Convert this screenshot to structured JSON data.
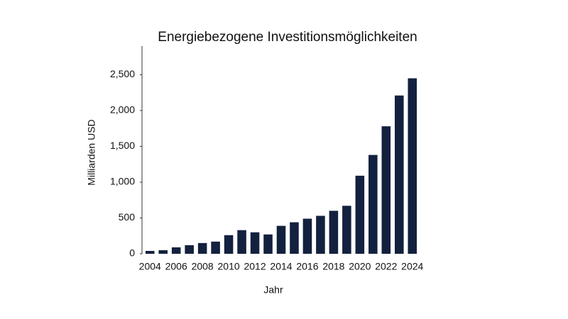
{
  "chart_data": {
    "type": "bar",
    "title": "Energiebezogene Investitionsmöglichkeiten",
    "x_label": "Jahr",
    "y_label": "Milliarden USD",
    "categories": [
      "2004",
      null,
      "2006",
      null,
      "2008",
      null,
      "2010",
      null,
      "2012",
      null,
      "2014",
      null,
      "2016",
      null,
      "2018",
      null,
      "2020",
      null,
      "2022",
      null,
      "2024"
    ],
    "values": [
      40,
      50,
      90,
      120,
      150,
      170,
      260,
      330,
      300,
      270,
      390,
      440,
      490,
      530,
      600,
      670,
      1090,
      1380,
      1780,
      2210,
      2450
    ],
    "color": "#13213f",
    "ylim": [
      0,
      2900
    ],
    "yticks": [
      0,
      {
        "value": 500,
        "label": "500"
      },
      {
        "value": 1000,
        "label": "1,000"
      },
      {
        "value": 1500,
        "label": "1,500"
      },
      {
        "value": 2000,
        "label": "2,000"
      },
      {
        "value": 2500,
        "label": "2,500"
      }
    ],
    "grid": false
  }
}
